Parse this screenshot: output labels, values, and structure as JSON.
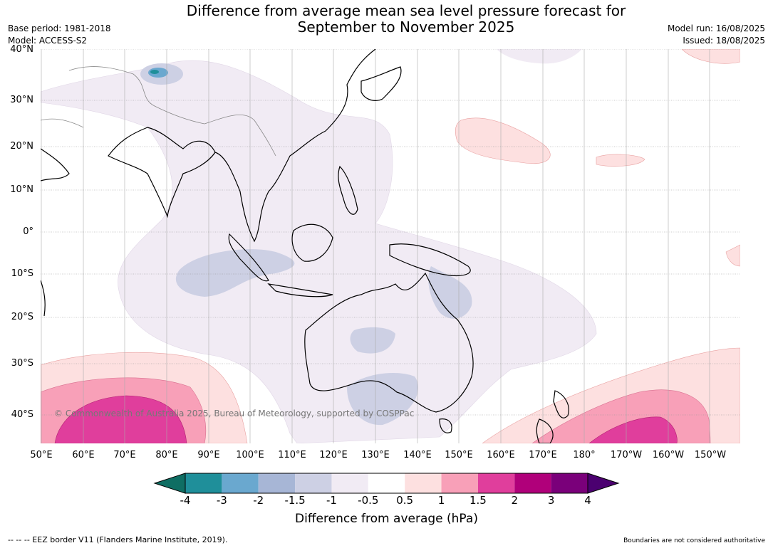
{
  "title_line1": "Difference from average mean sea level pressure forecast for",
  "title_line2": "September to November 2025",
  "base_period": "Base period: 1981-2018",
  "model": "Model: ACCESS-S2",
  "model_run": "Model run: 16/08/2025",
  "issued": "Issued: 18/08/2025",
  "lat_labels": [
    "40°N",
    "30°N",
    "20°N",
    "10°N",
    "0°",
    "10°S",
    "20°S",
    "30°S",
    "40°S"
  ],
  "lon_labels": [
    "50°E",
    "60°E",
    "70°E",
    "80°E",
    "90°E",
    "100°E",
    "110°E",
    "120°E",
    "130°E",
    "140°E",
    "150°E",
    "160°E",
    "170°E",
    "180°",
    "170°W",
    "160°W",
    "150°W"
  ],
  "colorbar": {
    "ticks": [
      "-4",
      "-3",
      "-2",
      "-1.5",
      "-1",
      "-0.5",
      "0.5",
      "1",
      "1.5",
      "2",
      "3",
      "4"
    ],
    "colors": [
      "#0f6e63",
      "#1f8f9a",
      "#6aa8cf",
      "#a7b6d6",
      "#cdd0e4",
      "#f1ebf4",
      "#ffffff",
      "#fde0e0",
      "#f8a0b8",
      "#e03e9c",
      "#b0007a",
      "#7a007a",
      "#4b0070"
    ],
    "label": "Difference from average (hPa)"
  },
  "copyright": "© Commonwealth of Australia 2025, Bureau of Meteorology, supported by COSPPac",
  "footer_left": "--  --  -- EEZ border V11 (Flanders Marine Institute, 2019).",
  "footer_right": "Boundaries are not considered authoritative"
}
